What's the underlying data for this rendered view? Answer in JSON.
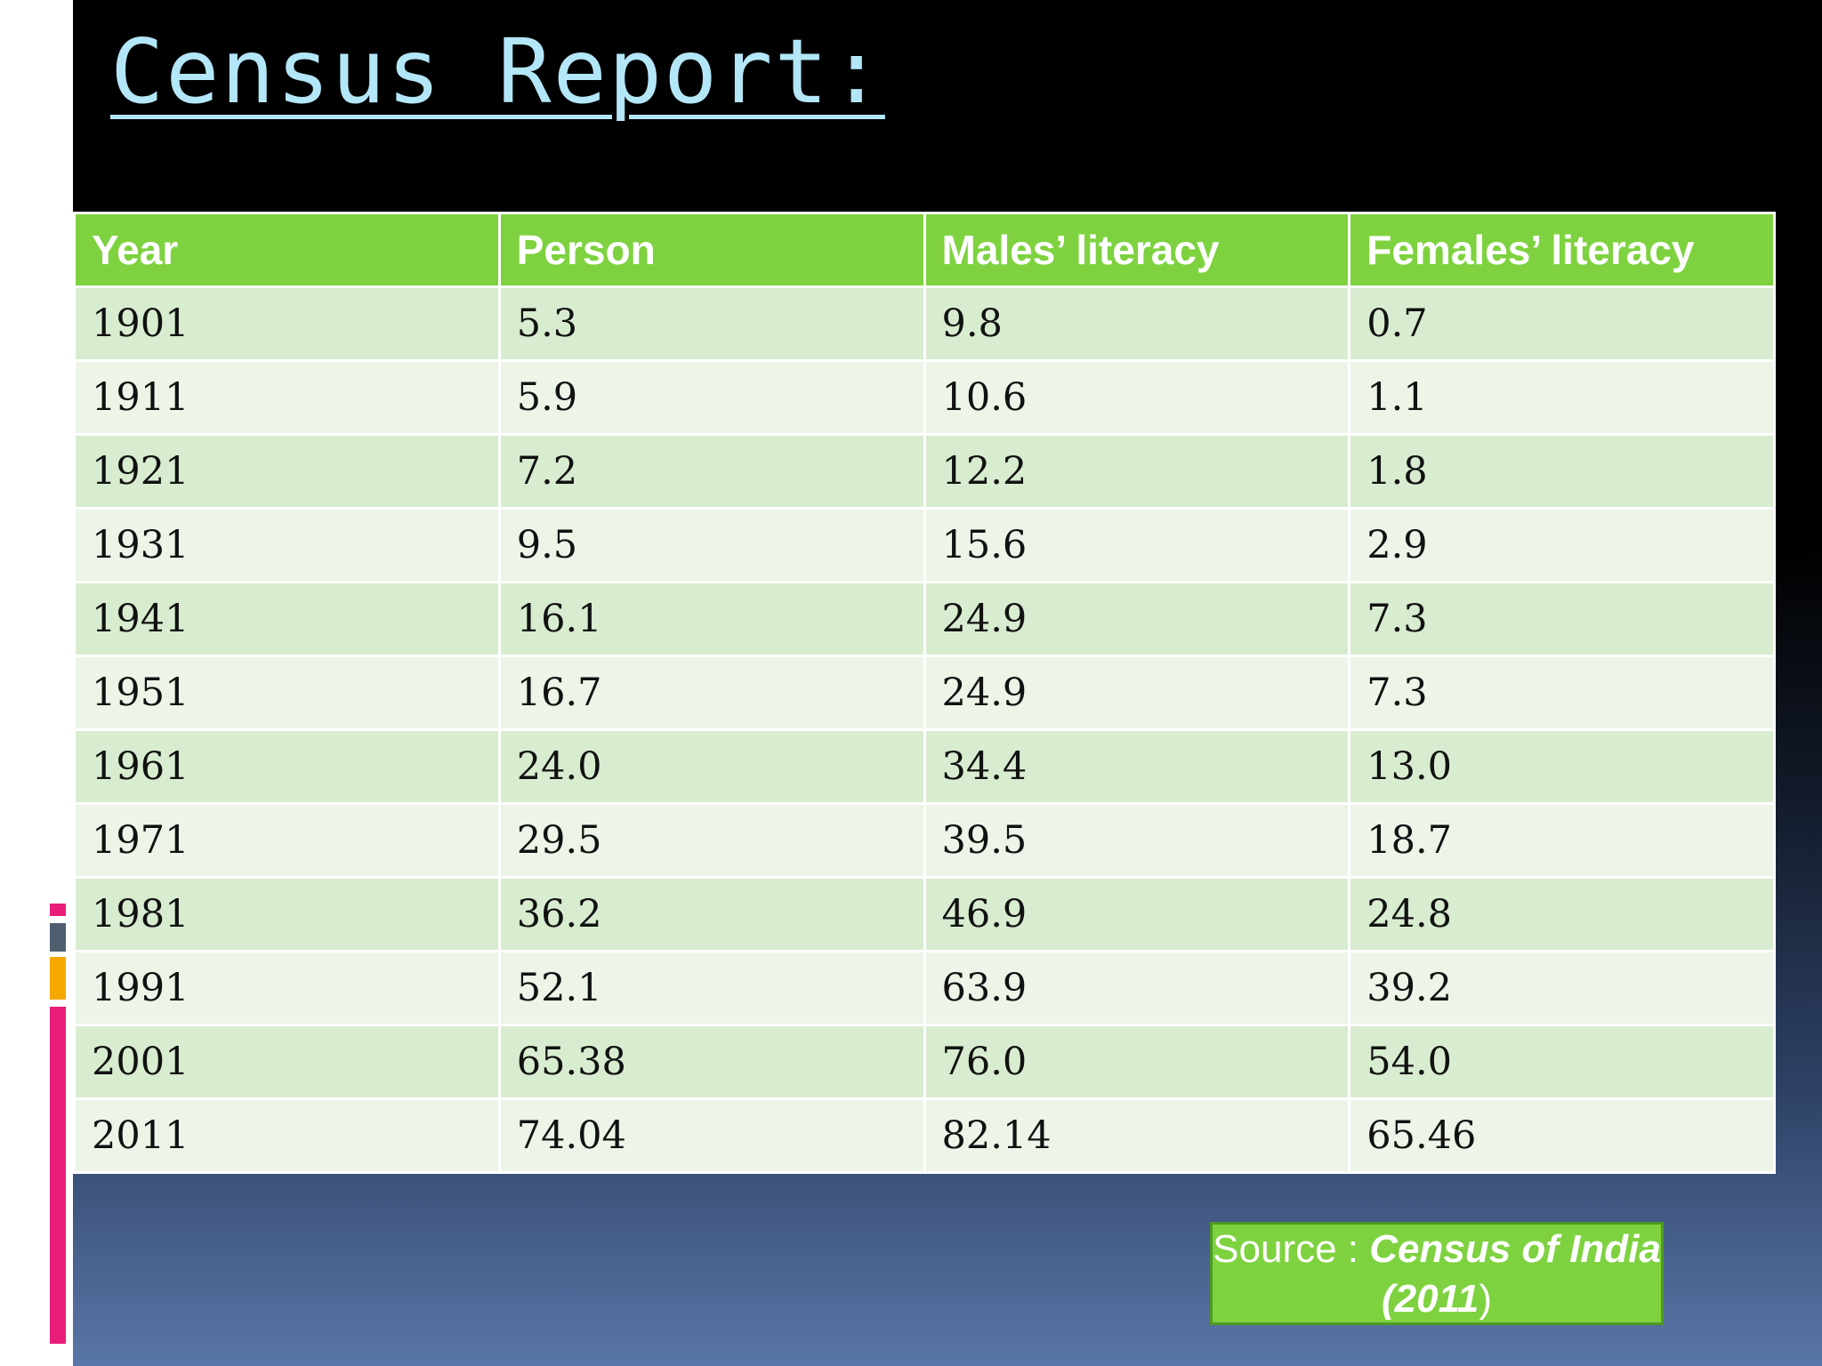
{
  "slide": {
    "title": "Census Report:",
    "colors": {
      "title": "#b3e6f7",
      "header_bg": "#7ed23f",
      "row_odd": "#d8ecd0",
      "row_even": "#ecf5e8",
      "accent_pink": "#e91e78",
      "accent_gray": "#4f5f70",
      "accent_orange": "#f7a800"
    }
  },
  "table": {
    "headers": [
      "Year",
      "Person",
      "Males’ literacy",
      "Females’ literacy"
    ],
    "rows": [
      [
        "1901",
        "5.3",
        "9.8",
        "0.7"
      ],
      [
        "1911",
        "5.9",
        "10.6",
        "1.1"
      ],
      [
        "1921",
        "7.2",
        "12.2",
        "1.8"
      ],
      [
        "1931",
        "9.5",
        "15.6",
        "2.9"
      ],
      [
        "1941",
        "16.1",
        "24.9",
        "7.3"
      ],
      [
        "1951",
        "16.7",
        "24.9",
        "7.3"
      ],
      [
        "1961",
        "24.0",
        "34.4",
        "13.0"
      ],
      [
        "1971",
        "29.5",
        "39.5",
        "18.7"
      ],
      [
        "1981",
        "36.2",
        "46.9",
        "24.8"
      ],
      [
        "1991",
        "52.1",
        "63.9",
        "39.2"
      ],
      [
        "2001",
        "65.38",
        "76.0",
        "54.0"
      ],
      [
        "2011",
        "74.04",
        "82.14",
        "65.46"
      ]
    ]
  },
  "source": {
    "prefix": "Source : ",
    "name": "Census of India",
    "year": "(2011",
    "suffix": ")"
  }
}
